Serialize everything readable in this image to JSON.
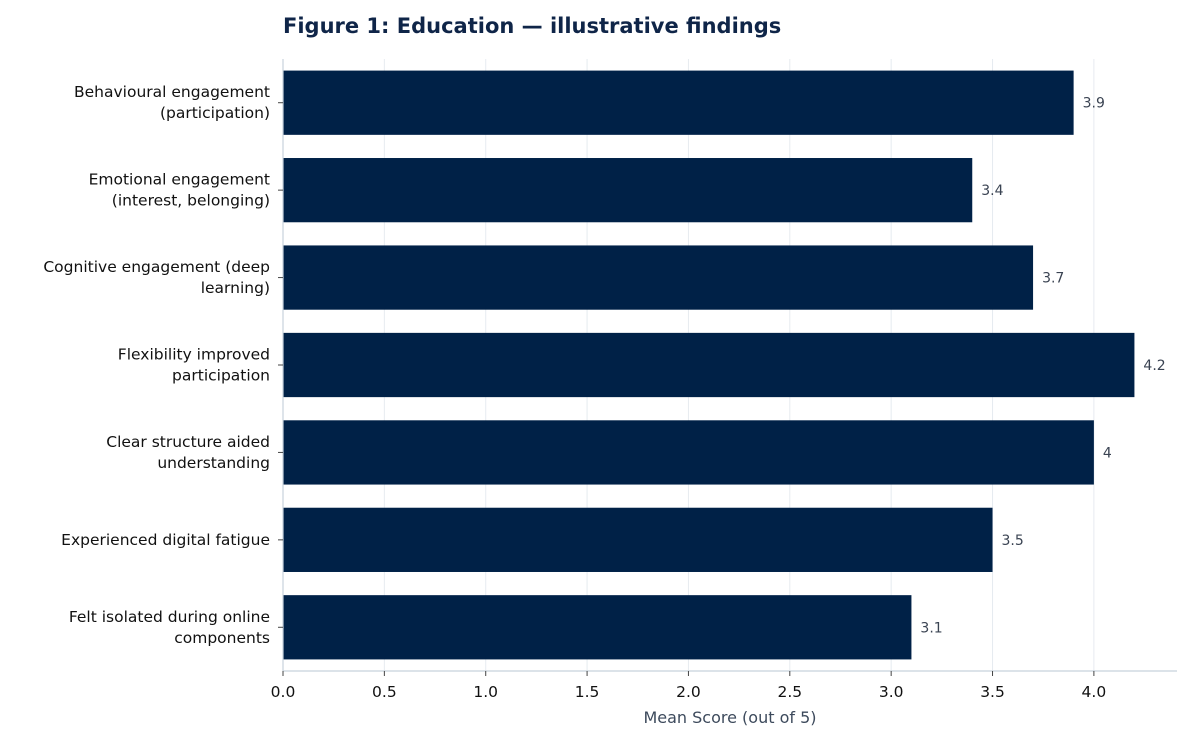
{
  "chart_data": {
    "type": "bar",
    "orientation": "horizontal",
    "title": "Figure 1: Education — illustrative findings",
    "xlabel": "Mean Score (out of 5)",
    "ylabel": "",
    "xlim": [
      0,
      4.41
    ],
    "xticks": [
      0.0,
      0.5,
      1.0,
      1.5,
      2.0,
      2.5,
      3.0,
      3.5,
      4.0
    ],
    "xtick_labels": [
      "0.0",
      "0.5",
      "1.0",
      "1.5",
      "2.0",
      "2.5",
      "3.0",
      "3.5",
      "4.0"
    ],
    "categories": [
      [
        "Behavioural engagement",
        "(participation)"
      ],
      [
        "Emotional engagement",
        "(interest, belonging)"
      ],
      [
        "Cognitive engagement (deep",
        "learning)"
      ],
      [
        "Flexibility improved",
        "participation"
      ],
      [
        "Clear structure aided",
        "understanding"
      ],
      [
        "Experienced digital fatigue"
      ],
      [
        "Felt isolated during online",
        "components"
      ]
    ],
    "values": [
      3.9,
      3.4,
      3.7,
      4.2,
      4.0,
      3.5,
      3.1
    ],
    "value_labels": [
      "3.9",
      "3.4",
      "3.7",
      "4.2",
      "4",
      "3.5",
      "3.1"
    ],
    "grid": "vertical",
    "legend": "none",
    "colors": {
      "bar": "#002147",
      "title": "#0f2548",
      "grid": "#e6ebf0",
      "axis": "#c8d2dc",
      "value_label": "#3a4352",
      "axis_title": "#3d4a5c"
    }
  }
}
